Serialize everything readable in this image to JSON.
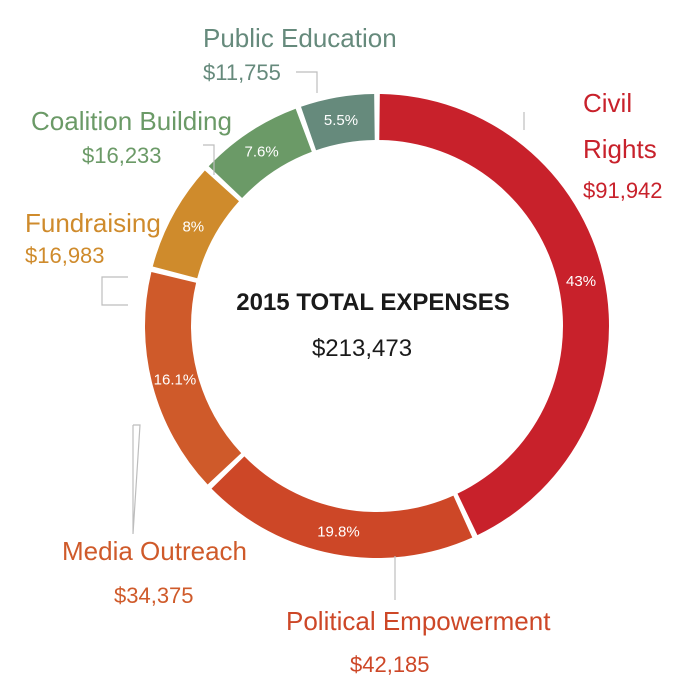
{
  "chart_data": {
    "type": "pie",
    "title": "2015 TOTAL EXPENSES",
    "total": "$213,473",
    "slices": [
      {
        "label_lines": [
          "Civil",
          "Rights"
        ],
        "amount": "$91,942",
        "value": 91942,
        "percent_label": "43%",
        "color": "#c8212b",
        "text_color": "#c8212b"
      },
      {
        "label_lines": [
          "Political Empowerment"
        ],
        "amount": "$42,185",
        "value": 42185,
        "percent_label": "19.8%",
        "color": "#cd4727",
        "text_color": "#cd4727"
      },
      {
        "label_lines": [
          "Media Outreach"
        ],
        "amount": "$34,375",
        "value": 34375,
        "percent_label": "16.1%",
        "color": "#cf5a2a",
        "text_color": "#cf5a2a"
      },
      {
        "label_lines": [
          "Fundraising"
        ],
        "amount": "$16,983",
        "value": 16983,
        "percent_label": "8%",
        "color": "#cf8b2c",
        "text_color": "#cf8b2c"
      },
      {
        "label_lines": [
          "Coalition Building"
        ],
        "amount": "$16,233",
        "value": 16233,
        "percent_label": "7.6%",
        "color": "#6b9a67",
        "text_color": "#6b9a67"
      },
      {
        "label_lines": [
          "Public Education"
        ],
        "amount": "$11,755",
        "value": 11755,
        "percent_label": "5.5%",
        "color": "#668a7c",
        "text_color": "#668a7c"
      }
    ]
  }
}
